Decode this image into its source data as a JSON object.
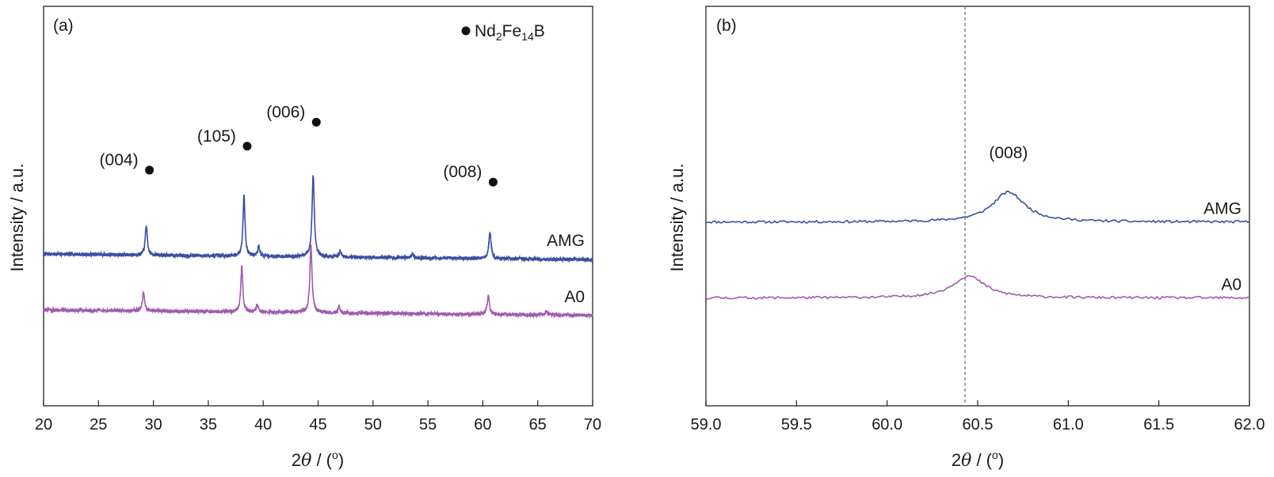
{
  "chart_data": [
    {
      "type": "line",
      "panel_label": "(a)",
      "xlabel": "2θ / (°)",
      "ylabel": "Intensity / a.u.",
      "xlim": [
        20,
        70
      ],
      "xticks": [
        20,
        25,
        30,
        35,
        40,
        45,
        50,
        55,
        60,
        65,
        70
      ],
      "ylim": [
        0,
        100
      ],
      "legend": {
        "marker": "filled-circle",
        "label": "Nd2Fe14B",
        "placement": "top-right"
      },
      "series": [
        {
          "name": "AMG",
          "color": "#3a4fa3",
          "baseline": 38,
          "peaks": [
            {
              "x": 29.35,
              "height": 7.5,
              "width": 0.16
            },
            {
              "x": 38.25,
              "height": 15.5,
              "width": 0.16
            },
            {
              "x": 39.6,
              "height": 2.5,
              "width": 0.16
            },
            {
              "x": 44.55,
              "height": 20.5,
              "width": 0.18
            },
            {
              "x": 47.0,
              "height": 1.8,
              "width": 0.14
            },
            {
              "x": 53.6,
              "height": 0.8,
              "width": 0.2
            },
            {
              "x": 60.65,
              "height": 6.5,
              "width": 0.18
            }
          ]
        },
        {
          "name": "A0",
          "color": "#a25ab0",
          "baseline": 24,
          "peaks": [
            {
              "x": 29.1,
              "height": 4.8,
              "width": 0.16
            },
            {
              "x": 38.05,
              "height": 11.5,
              "width": 0.16
            },
            {
              "x": 39.45,
              "height": 2.0,
              "width": 0.16
            },
            {
              "x": 44.35,
              "height": 16.5,
              "width": 0.18
            },
            {
              "x": 46.9,
              "height": 1.5,
              "width": 0.14
            },
            {
              "x": 60.5,
              "height": 4.5,
              "width": 0.18
            },
            {
              "x": 65.8,
              "height": 0.8,
              "width": 0.25
            }
          ]
        }
      ],
      "annotations": [
        {
          "text": "(004)",
          "x": 29.35,
          "y": 59
        },
        {
          "text": "(105)",
          "x": 38.25,
          "y": 65
        },
        {
          "text": "(006)",
          "x": 44.55,
          "y": 71
        },
        {
          "text": "(008)",
          "x": 60.65,
          "y": 56
        }
      ]
    },
    {
      "type": "line",
      "panel_label": "(b)",
      "xlabel": "2θ / (°)",
      "ylabel": "Intensity / a.u.",
      "xlim": [
        59.0,
        62.0
      ],
      "xticks": [
        "59.0",
        "59.5",
        "60.0",
        "60.5",
        "61.0",
        "61.5",
        "62.0"
      ],
      "ylim": [
        0,
        100
      ],
      "reference_line_x": 60.43,
      "series": [
        {
          "name": "AMG",
          "color": "#3a4fa3",
          "baseline": 46,
          "peaks": [
            {
              "x": 60.67,
              "height": 7.5,
              "width": 0.16
            }
          ]
        },
        {
          "name": "A0",
          "color": "#a25ab0",
          "baseline": 27,
          "peaks": [
            {
              "x": 60.45,
              "height": 5.5,
              "width": 0.16
            }
          ]
        }
      ],
      "annotations": [
        {
          "text": "(008)",
          "x": 60.67,
          "y": 60
        }
      ]
    }
  ]
}
